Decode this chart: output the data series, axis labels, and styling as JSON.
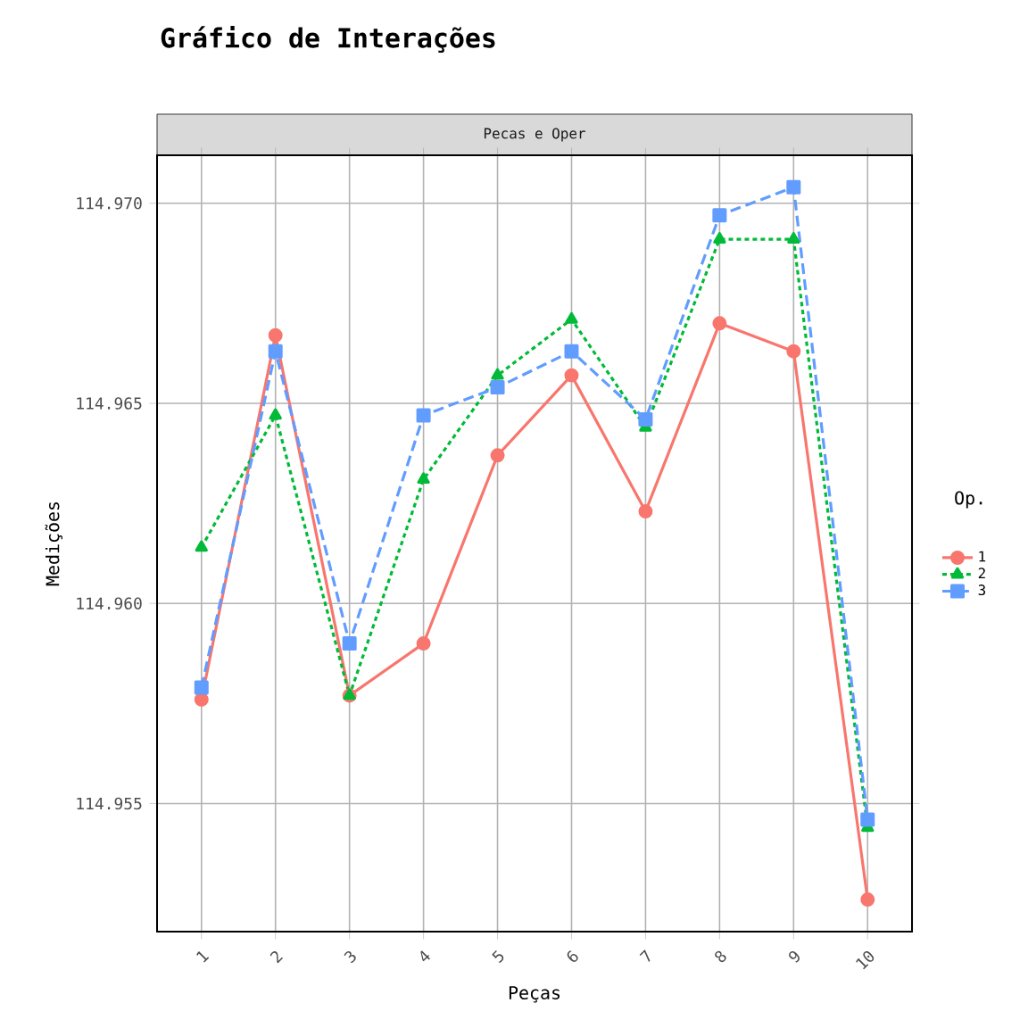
{
  "chart_data": {
    "type": "line",
    "title": "Gráfico de Interações",
    "subtitle": "Pecas e Oper",
    "xlabel": "Peças",
    "ylabel": "Medições",
    "legend_title": "Op.",
    "categories": [
      "1",
      "2",
      "3",
      "4",
      "5",
      "6",
      "7",
      "8",
      "9",
      "10"
    ],
    "series": [
      {
        "name": "1",
        "color": "#f8766d",
        "marker": "circle",
        "line_style": "solid",
        "values": [
          114.9576,
          114.9667,
          114.9577,
          114.959,
          114.9637,
          114.9657,
          114.9623,
          114.967,
          114.9663,
          114.9526
        ]
      },
      {
        "name": "2",
        "color": "#00ba38",
        "marker": "triangle",
        "line_style": "dotted",
        "values": [
          114.9614,
          114.9647,
          114.9577,
          114.9631,
          114.9657,
          114.9671,
          114.9644,
          114.9691,
          114.9691,
          114.9544
        ]
      },
      {
        "name": "3",
        "color": "#619cff",
        "marker": "square",
        "line_style": "dashed",
        "values": [
          114.9579,
          114.9663,
          114.959,
          114.9647,
          114.9654,
          114.9663,
          114.9646,
          114.9697,
          114.9704,
          114.9546
        ]
      }
    ],
    "ylim": [
      114.9518,
      114.9712
    ],
    "yticks": [
      {
        "value": 114.955,
        "label": "114.955"
      },
      {
        "value": 114.96,
        "label": "114.960"
      },
      {
        "value": 114.965,
        "label": "114.965"
      },
      {
        "value": 114.97,
        "label": "114.970"
      }
    ],
    "grid": true,
    "legend": "right"
  }
}
